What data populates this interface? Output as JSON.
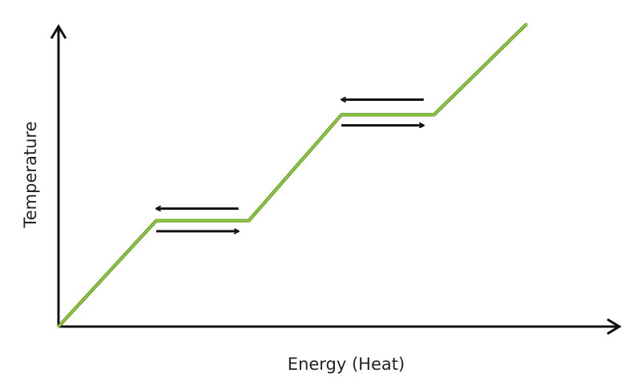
{
  "chart_data": {
    "type": "line",
    "title": "",
    "xlabel": "Energy (Heat)",
    "ylabel": "Temperature",
    "xlim": [
      0,
      100
    ],
    "ylim": [
      0,
      100
    ],
    "grid": false,
    "legend": "none",
    "series": [
      {
        "x": [
          0,
          19,
          37,
          55,
          73,
          91
        ],
        "y": [
          0,
          35,
          35,
          70,
          70,
          100
        ]
      }
    ],
    "annotations": [
      {
        "type": "arrow",
        "direction": "left",
        "x_from": 35,
        "x_to": 19,
        "y": 39
      },
      {
        "type": "arrow",
        "direction": "right",
        "x_from": 19,
        "x_to": 35,
        "y": 31.5
      },
      {
        "type": "arrow",
        "direction": "left",
        "x_from": 71,
        "x_to": 55,
        "y": 75
      },
      {
        "type": "arrow",
        "direction": "right",
        "x_from": 55,
        "x_to": 71,
        "y": 66.5
      }
    ],
    "colors": {
      "line": "#8dc63f",
      "line_edge": "#5a8a1f",
      "axes": "#111111",
      "arrows": "#111111",
      "text": "#222222"
    }
  }
}
